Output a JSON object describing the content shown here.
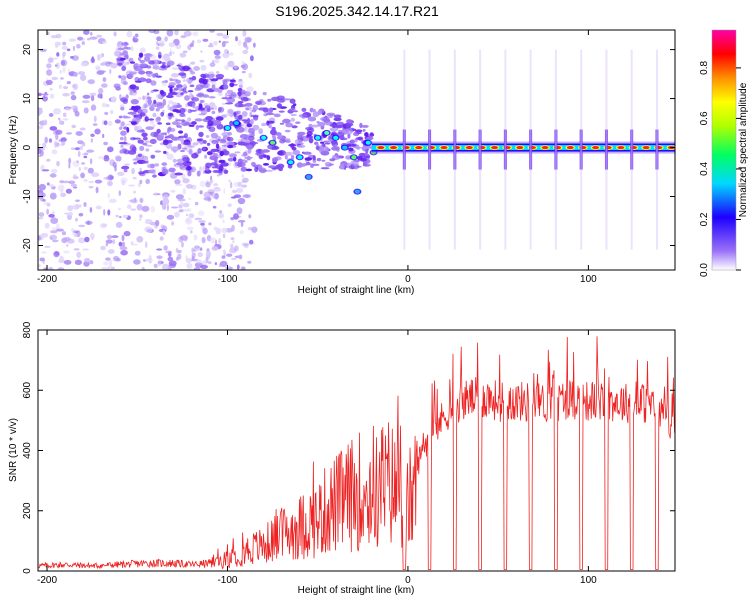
{
  "title": "S196.2025.342.14.17.R21",
  "chart_data": [
    {
      "type": "heatmap",
      "name": "spectrogram",
      "xlabel": "Height of straight line (km)",
      "ylabel": "Frequency (Hz)",
      "xlim": [
        -205,
        148
      ],
      "ylim": [
        -25,
        24
      ],
      "xticks": [
        -200,
        -100,
        0,
        100
      ],
      "yticks": [
        -20,
        -10,
        0,
        10,
        20
      ],
      "colorbar": {
        "label": "Normalized spectral amplitude",
        "range": [
          0.0,
          0.95
        ],
        "ticks": [
          "0.0",
          "0.2",
          "0.4",
          "0.6",
          "0.8"
        ],
        "colors": [
          "#ffffff",
          "#8a5cf5",
          "#1d00ff",
          "#00ffff",
          "#00ff00",
          "#ffff00",
          "#ff8000",
          "#ff0000",
          "#ff00cc"
        ]
      },
      "description_points": {
        "carrier_frequency_hz": 0,
        "noise_region_km": [
          -205,
          -110
        ],
        "scattered_region_km": [
          -110,
          -20
        ],
        "stable_carrier_km": [
          -20,
          148
        ],
        "dropout_positions_km": [
          -2,
          12,
          26,
          40,
          54,
          68,
          82,
          96,
          110,
          124,
          138
        ]
      }
    },
    {
      "type": "line",
      "name": "snr",
      "xlabel": "Height of straight line (km)",
      "ylabel": "SNR (10 * v/v)",
      "xlim": [
        -205,
        148
      ],
      "ylim": [
        0,
        800
      ],
      "xticks": [
        -200,
        -100,
        0,
        100
      ],
      "yticks": [
        0,
        200,
        400,
        600,
        800
      ],
      "series": [
        {
          "name": "SNR",
          "color": "#ee2222",
          "x": [
            -205,
            -190,
            -175,
            -160,
            -145,
            -130,
            -120,
            -110,
            -100,
            -95,
            -90,
            -85,
            -80,
            -75,
            -70,
            -65,
            -60,
            -55,
            -50,
            -45,
            -40,
            -35,
            -30,
            -25,
            -22,
            -20,
            -17,
            -15,
            -12,
            -10,
            -8,
            -5,
            -2,
            0,
            5,
            10,
            15,
            20,
            25,
            30,
            35,
            40,
            45,
            50,
            60,
            70,
            80,
            90,
            100,
            110,
            120,
            130,
            140,
            145,
            148
          ],
          "y": [
            20,
            25,
            20,
            25,
            30,
            30,
            25,
            30,
            45,
            60,
            80,
            90,
            100,
            120,
            140,
            160,
            170,
            190,
            200,
            240,
            260,
            280,
            300,
            320,
            280,
            350,
            300,
            330,
            320,
            360,
            320,
            330,
            270,
            260,
            340,
            420,
            460,
            500,
            540,
            550,
            560,
            560,
            560,
            550,
            550,
            545,
            545,
            560,
            550,
            550,
            545,
            545,
            520,
            490,
            460
          ]
        }
      ],
      "dropout_positions_km": [
        -2,
        12,
        26,
        40,
        54,
        68,
        82,
        96,
        110,
        124,
        138
      ]
    }
  ]
}
